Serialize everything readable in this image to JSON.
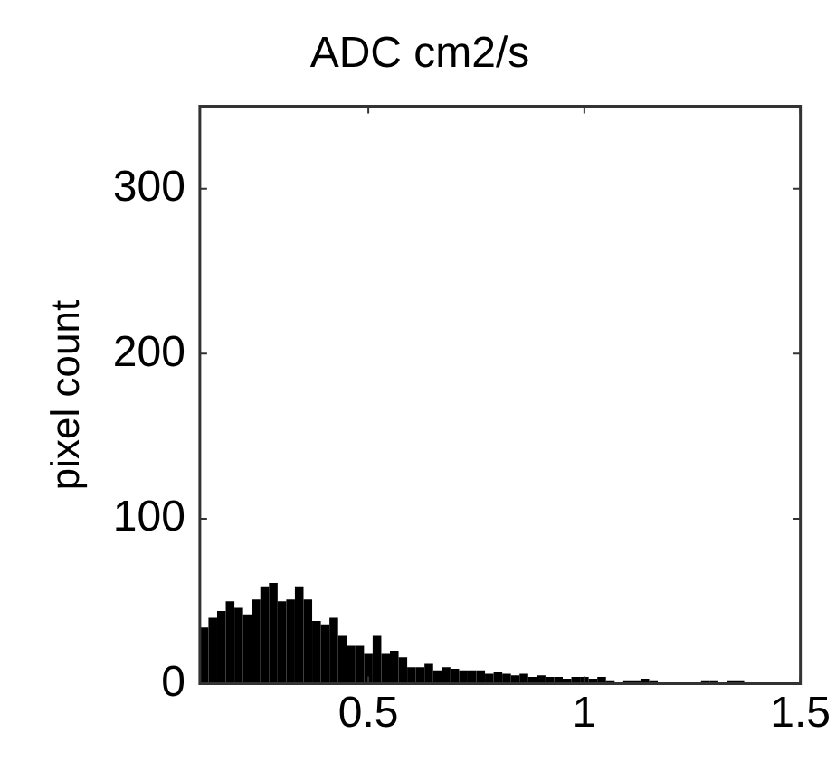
{
  "chart_data": {
    "type": "histogram",
    "title": "ADC cm2/s",
    "ylabel": "pixel count",
    "color": "#000000",
    "bins": [
      0.11,
      0.13,
      0.15,
      0.17,
      0.19,
      0.21,
      0.23,
      0.25,
      0.27,
      0.29,
      0.31,
      0.33,
      0.35,
      0.37,
      0.39,
      0.41,
      0.43,
      0.45,
      0.47,
      0.49,
      0.51,
      0.53,
      0.55,
      0.57,
      0.59,
      0.61,
      0.63,
      0.65,
      0.67,
      0.69,
      0.71,
      0.73,
      0.75,
      0.77,
      0.79,
      0.81,
      0.83,
      0.85,
      0.87,
      0.89,
      0.91,
      0.93,
      0.95,
      0.97,
      0.99,
      1.01,
      1.03,
      1.05,
      1.07,
      1.09,
      1.11,
      1.13,
      1.15,
      1.17,
      1.19,
      1.21,
      1.23,
      1.25,
      1.27,
      1.29,
      1.31,
      1.33,
      1.35,
      1.37,
      1.39,
      1.41,
      1.43,
      1.45,
      1.47,
      1.49
    ],
    "values": [
      34,
      40,
      44,
      50,
      46,
      42,
      51,
      59,
      61,
      50,
      51,
      59,
      51,
      38,
      36,
      40,
      29,
      23,
      23,
      18,
      29,
      18,
      20,
      16,
      10,
      10,
      12,
      8,
      10,
      9,
      8,
      8,
      8,
      6,
      7,
      6,
      5,
      6,
      4,
      5,
      4,
      4,
      3,
      4,
      4,
      3,
      4,
      2,
      0,
      2,
      2,
      3,
      2,
      0,
      0,
      0,
      0,
      0,
      2,
      2,
      0,
      2,
      2,
      0,
      0,
      0,
      0,
      0,
      0
    ],
    "xlim": [
      0.11,
      1.5
    ],
    "xticks": [
      0.5,
      1,
      1.5
    ],
    "ylim": [
      0,
      350
    ],
    "yticks": [
      0,
      100,
      200,
      300
    ],
    "grid": false,
    "legend": false
  }
}
